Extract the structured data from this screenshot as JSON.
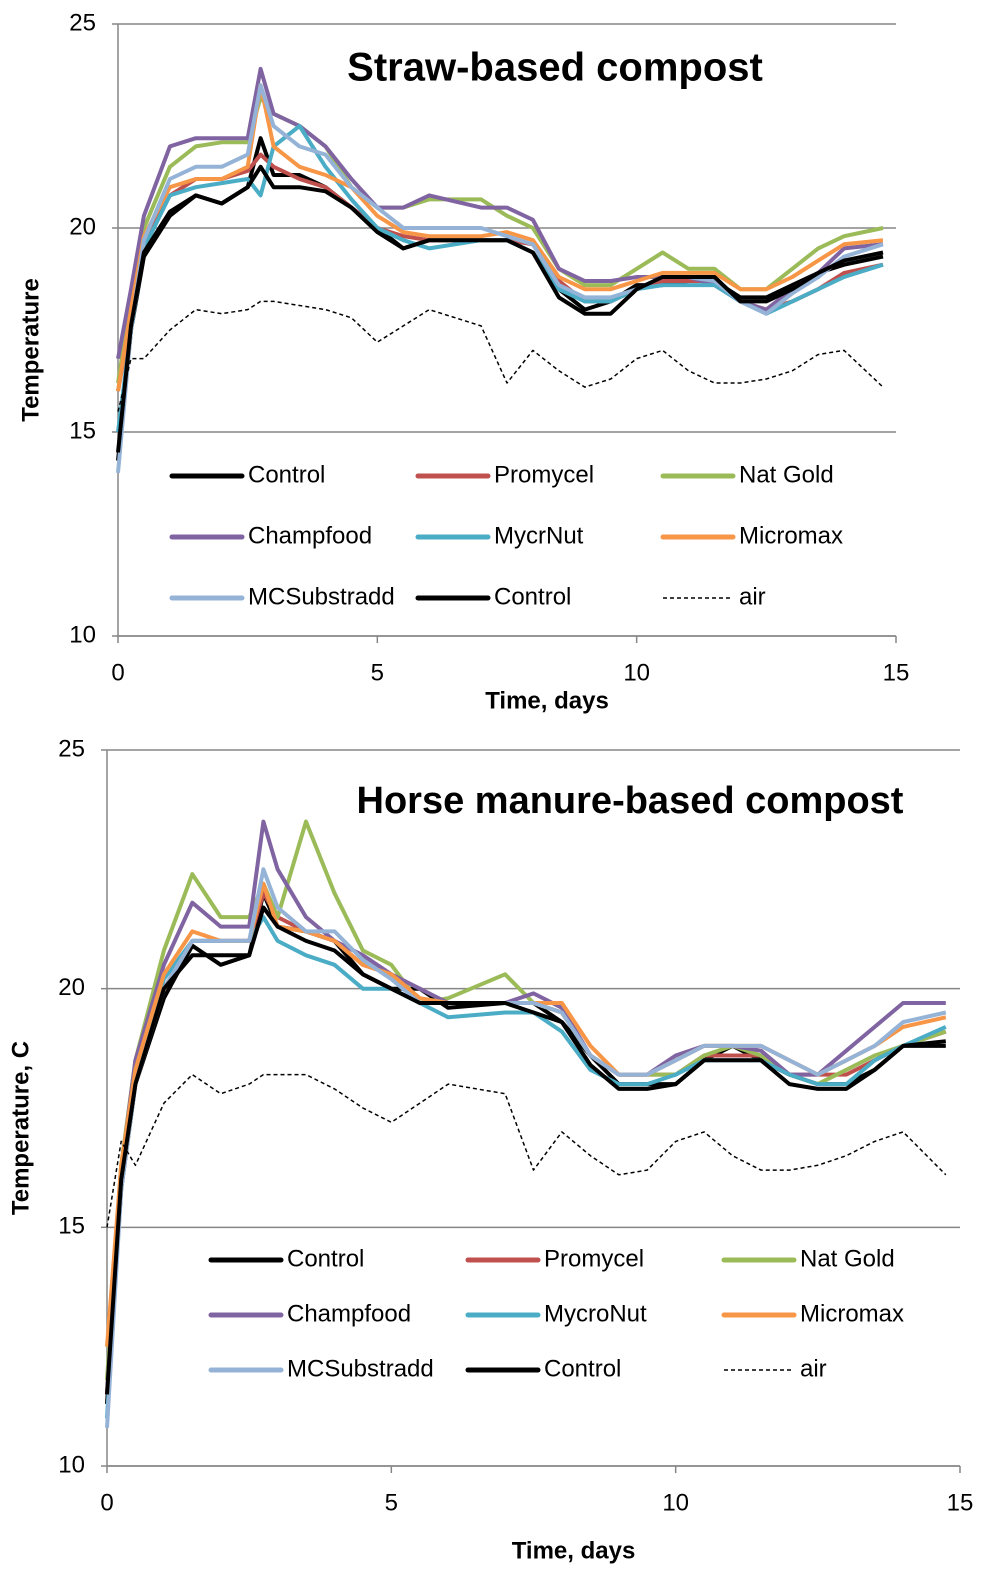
{
  "chart_data": [
    {
      "type": "line",
      "title": "Straw-based compost",
      "xlabel": "Time, days",
      "ylabel": "Temperature",
      "x": [
        0,
        0.25,
        0.5,
        1,
        1.5,
        2,
        2.5,
        2.75,
        3,
        3.5,
        4,
        4.5,
        5,
        5.5,
        6,
        7,
        7.5,
        8,
        8.5,
        9,
        9.5,
        10,
        10.5,
        11,
        11.5,
        12,
        12.5,
        13,
        13.5,
        14,
        14.75
      ],
      "xlim": [
        0,
        15
      ],
      "ylim": [
        10,
        25
      ],
      "xticks": [
        0,
        5,
        10,
        15
      ],
      "yticks": [
        10,
        15,
        20,
        25
      ],
      "grid": true,
      "legend": "bottom",
      "series": [
        {
          "name": "Control",
          "color": "#000000",
          "style": "solid",
          "values": [
            14.3,
            17.5,
            19.3,
            20.3,
            20.8,
            20.6,
            21.0,
            22.2,
            21.3,
            21.3,
            21.0,
            20.5,
            20.0,
            19.5,
            19.7,
            19.7,
            19.7,
            19.4,
            18.5,
            18.0,
            18.2,
            18.6,
            18.6,
            18.7,
            18.7,
            18.3,
            18.3,
            18.6,
            18.9,
            19.1,
            19.3
          ]
        },
        {
          "name": "Promycel",
          "color": "#c0504d",
          "style": "solid",
          "values": [
            16.0,
            17.8,
            19.6,
            20.8,
            21.2,
            21.2,
            21.4,
            21.8,
            21.5,
            21.2,
            21.0,
            20.5,
            20.0,
            19.8,
            19.7,
            19.7,
            19.7,
            19.6,
            18.7,
            18.2,
            18.2,
            18.5,
            18.7,
            18.7,
            18.7,
            18.2,
            18.0,
            18.2,
            18.5,
            18.9,
            19.1
          ]
        },
        {
          "name": "Nat Gold",
          "color": "#9bbb59",
          "style": "solid",
          "values": [
            16.2,
            18.3,
            20.0,
            21.5,
            22.0,
            22.1,
            22.1,
            23.2,
            22.8,
            22.5,
            22.0,
            21.0,
            20.5,
            20.5,
            20.7,
            20.7,
            20.3,
            20.0,
            19.0,
            18.6,
            18.6,
            19.0,
            19.4,
            19.0,
            19.0,
            18.5,
            18.5,
            19.0,
            19.5,
            19.8,
            20.0
          ]
        },
        {
          "name": "Champfood",
          "color": "#8064a2",
          "style": "solid",
          "values": [
            16.8,
            18.5,
            20.3,
            22.0,
            22.2,
            22.2,
            22.2,
            23.9,
            22.8,
            22.5,
            22.0,
            21.2,
            20.5,
            20.5,
            20.8,
            20.5,
            20.5,
            20.2,
            19.0,
            18.7,
            18.7,
            18.8,
            18.8,
            18.8,
            18.6,
            18.2,
            18.0,
            18.5,
            18.9,
            19.5,
            19.6
          ]
        },
        {
          "name": "MycrNut",
          "color": "#4bacc6",
          "style": "solid",
          "values": [
            15.0,
            17.5,
            19.5,
            20.8,
            21.0,
            21.1,
            21.2,
            20.8,
            22.0,
            22.5,
            21.5,
            20.7,
            20.0,
            19.7,
            19.5,
            19.7,
            19.7,
            19.4,
            18.5,
            18.2,
            18.2,
            18.5,
            18.6,
            18.6,
            18.6,
            18.2,
            17.9,
            18.2,
            18.5,
            18.8,
            19.1
          ]
        },
        {
          "name": "Micromax",
          "color": "#f79646",
          "style": "solid",
          "values": [
            16.0,
            18.0,
            19.8,
            21.0,
            21.2,
            21.2,
            21.5,
            23.5,
            22.0,
            21.5,
            21.3,
            21.0,
            20.3,
            19.9,
            19.8,
            19.8,
            19.9,
            19.7,
            18.8,
            18.5,
            18.5,
            18.7,
            18.9,
            18.9,
            18.9,
            18.5,
            18.5,
            18.8,
            19.2,
            19.6,
            19.7
          ]
        },
        {
          "name": "MCSubstradd",
          "color": "#95b3d7",
          "style": "solid",
          "values": [
            14.0,
            17.5,
            19.7,
            21.2,
            21.5,
            21.5,
            21.8,
            23.5,
            22.5,
            22.0,
            21.8,
            21.0,
            20.5,
            20.0,
            20.0,
            20.0,
            19.8,
            19.6,
            18.6,
            18.3,
            18.3,
            18.5,
            18.8,
            18.8,
            18.7,
            18.2,
            17.9,
            18.4,
            18.8,
            19.3,
            19.6
          ]
        },
        {
          "name": "Control",
          "color": "#000000",
          "style": "solid",
          "values": [
            14.5,
            17.6,
            19.4,
            20.4,
            20.8,
            20.6,
            21.0,
            21.5,
            21.0,
            21.0,
            20.9,
            20.5,
            19.9,
            19.5,
            19.7,
            19.7,
            19.7,
            19.4,
            18.3,
            17.9,
            17.9,
            18.5,
            18.8,
            18.8,
            18.8,
            18.2,
            18.2,
            18.5,
            18.9,
            19.2,
            19.4
          ]
        },
        {
          "name": "air",
          "color": "#000000",
          "style": "dashed",
          "values": [
            15.5,
            16.8,
            16.8,
            17.5,
            18.0,
            17.9,
            18.0,
            18.2,
            18.2,
            18.1,
            18.0,
            17.8,
            17.2,
            17.6,
            18.0,
            17.6,
            16.2,
            17.0,
            16.5,
            16.1,
            16.3,
            16.8,
            17.0,
            16.5,
            16.2,
            16.2,
            16.3,
            16.5,
            16.9,
            17.0,
            16.1
          ]
        }
      ]
    },
    {
      "type": "line",
      "title": "Horse manure-based compost",
      "xlabel": "Time, days",
      "ylabel": "Temperature, C",
      "x": [
        0,
        0.25,
        0.5,
        1,
        1.5,
        2,
        2.5,
        2.75,
        3,
        3.5,
        4,
        4.5,
        5,
        5.5,
        6,
        7,
        7.5,
        8,
        8.5,
        9,
        9.5,
        10,
        10.5,
        11,
        11.5,
        12,
        12.5,
        13,
        13.5,
        14,
        14.75
      ],
      "xlim": [
        0,
        15
      ],
      "ylim": [
        10,
        25
      ],
      "xticks": [
        0,
        5,
        10,
        15
      ],
      "yticks": [
        10,
        15,
        20,
        25
      ],
      "grid": true,
      "legend": "bottom",
      "series": [
        {
          "name": "Control",
          "color": "#000000",
          "style": "solid",
          "values": [
            11.3,
            15.8,
            18.0,
            19.8,
            20.9,
            20.5,
            20.7,
            22.0,
            21.3,
            21.2,
            21.0,
            20.3,
            20.0,
            20.0,
            19.6,
            19.7,
            19.7,
            19.3,
            18.6,
            18.0,
            18.0,
            18.0,
            18.5,
            18.8,
            18.5,
            18.2,
            18.0,
            18.0,
            18.3,
            18.8,
            18.8
          ]
        },
        {
          "name": "Promycel",
          "color": "#c0504d",
          "style": "solid",
          "values": [
            11.5,
            16.0,
            18.2,
            20.0,
            21.0,
            21.0,
            21.0,
            22.0,
            21.5,
            21.2,
            21.0,
            20.5,
            20.3,
            19.7,
            19.7,
            19.7,
            19.7,
            19.5,
            18.6,
            18.2,
            18.2,
            18.2,
            18.6,
            18.6,
            18.6,
            18.2,
            18.2,
            18.2,
            18.5,
            18.8,
            19.1
          ]
        },
        {
          "name": "Nat Gold",
          "color": "#9bbb59",
          "style": "solid",
          "values": [
            11.8,
            16.3,
            18.5,
            20.8,
            22.4,
            21.5,
            21.5,
            22.2,
            21.5,
            23.5,
            22.0,
            20.8,
            20.5,
            19.7,
            19.8,
            20.3,
            19.7,
            19.5,
            18.6,
            18.2,
            18.2,
            18.2,
            18.6,
            18.8,
            18.6,
            18.2,
            18.0,
            18.3,
            18.6,
            18.8,
            19.1
          ]
        },
        {
          "name": "Champfood",
          "color": "#8064a2",
          "style": "solid",
          "values": [
            11.5,
            16.2,
            18.5,
            20.5,
            21.8,
            21.3,
            21.3,
            23.5,
            22.5,
            21.5,
            21.0,
            20.7,
            20.3,
            20.0,
            19.7,
            19.7,
            19.9,
            19.6,
            18.6,
            18.2,
            18.2,
            18.6,
            18.8,
            18.8,
            18.7,
            18.2,
            18.2,
            18.7,
            19.2,
            19.7,
            19.7
          ]
        },
        {
          "name": "MycroNut",
          "color": "#4bacc6",
          "style": "solid",
          "values": [
            11.0,
            16.0,
            18.3,
            20.2,
            21.0,
            21.0,
            21.0,
            21.5,
            21.0,
            20.7,
            20.5,
            20.0,
            20.0,
            19.7,
            19.4,
            19.5,
            19.5,
            19.1,
            18.3,
            18.0,
            18.0,
            18.2,
            18.5,
            18.5,
            18.5,
            18.2,
            18.0,
            18.0,
            18.5,
            18.8,
            19.2
          ]
        },
        {
          "name": "Micromax",
          "color": "#f79646",
          "style": "solid",
          "values": [
            12.5,
            16.3,
            18.3,
            20.3,
            21.2,
            21.0,
            21.0,
            22.2,
            21.3,
            21.2,
            21.0,
            20.5,
            20.3,
            19.8,
            19.7,
            19.7,
            19.7,
            19.7,
            18.8,
            18.2,
            18.2,
            18.5,
            18.8,
            18.8,
            18.8,
            18.5,
            18.2,
            18.5,
            18.8,
            19.2,
            19.4
          ]
        },
        {
          "name": "MCSubstradd",
          "color": "#95b3d7",
          "style": "solid",
          "values": [
            10.8,
            15.8,
            18.0,
            20.0,
            21.0,
            21.0,
            21.0,
            22.5,
            21.7,
            21.2,
            21.2,
            20.6,
            20.2,
            19.7,
            19.7,
            19.7,
            19.7,
            19.5,
            18.6,
            18.2,
            18.2,
            18.5,
            18.8,
            18.8,
            18.8,
            18.5,
            18.2,
            18.5,
            18.8,
            19.3,
            19.5
          ]
        },
        {
          "name": "Control",
          "color": "#000000",
          "style": "solid",
          "values": [
            11.5,
            16.0,
            18.0,
            20.0,
            20.7,
            20.7,
            20.7,
            21.7,
            21.3,
            21.0,
            20.8,
            20.3,
            20.0,
            19.7,
            19.7,
            19.7,
            19.5,
            19.3,
            18.4,
            17.9,
            17.9,
            18.0,
            18.5,
            18.5,
            18.5,
            18.0,
            17.9,
            17.9,
            18.3,
            18.8,
            18.9
          ]
        },
        {
          "name": "air",
          "color": "#000000",
          "style": "dashed",
          "values": [
            15.0,
            16.8,
            16.3,
            17.6,
            18.2,
            17.8,
            18.0,
            18.2,
            18.2,
            18.2,
            17.9,
            17.5,
            17.2,
            17.6,
            18.0,
            17.8,
            16.2,
            17.0,
            16.5,
            16.1,
            16.2,
            16.8,
            17.0,
            16.5,
            16.2,
            16.2,
            16.3,
            16.5,
            16.8,
            17.0,
            16.1
          ]
        }
      ]
    }
  ]
}
